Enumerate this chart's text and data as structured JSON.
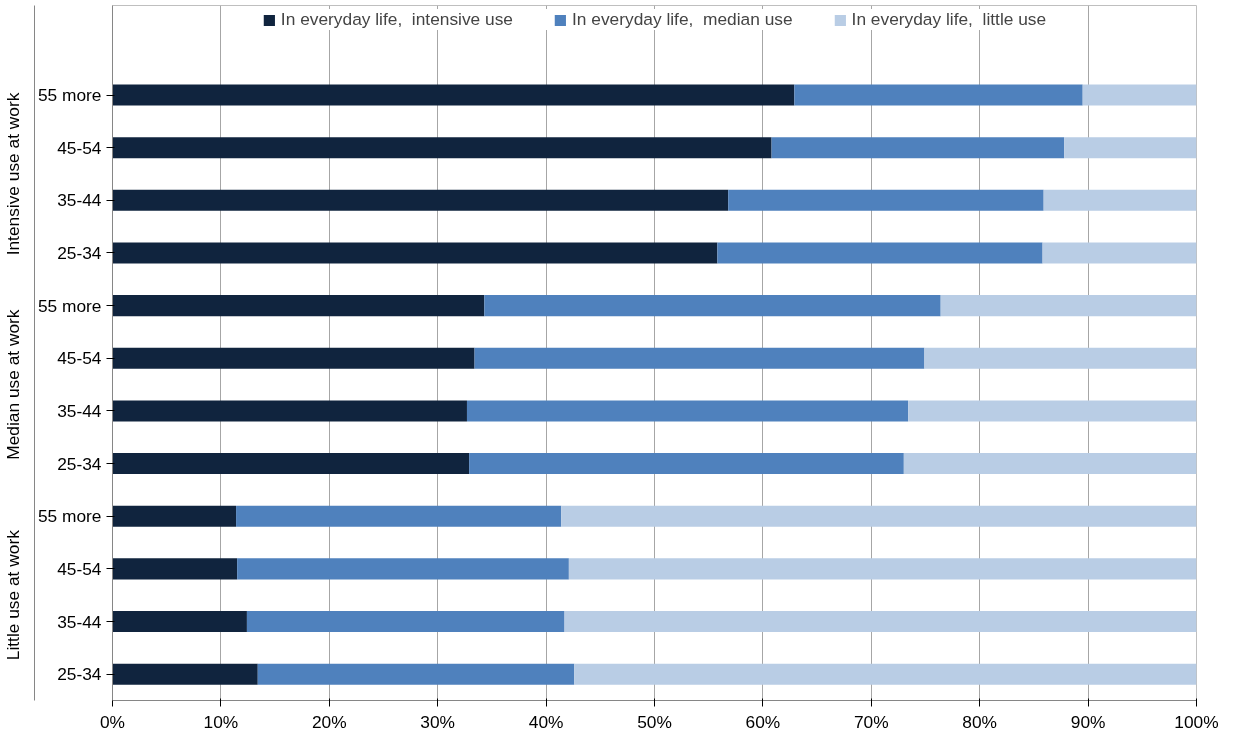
{
  "chart_data": {
    "type": "bar",
    "orientation": "horizontal",
    "stacked": true,
    "categories": [
      "55 more",
      "45-54",
      "35-44",
      "25-34",
      "55 more",
      "45-54",
      "35-44",
      "25-34",
      "55 more",
      "45-54",
      "35-44",
      "25-34"
    ],
    "annotations": [
      "Intensive use at work",
      "Median use at work",
      "Little use at work"
    ],
    "series": [
      {
        "name": "In everyday life,  intensive use",
        "color": "#10243e",
        "values": [
          62.9,
          60.8,
          56.8,
          55.8,
          34.3,
          33.4,
          32.7,
          32.9,
          11.4,
          11.5,
          12.4,
          13.4
        ]
      },
      {
        "name": "In everyday life,  median use",
        "color": "#4f81bd",
        "values": [
          26.6,
          27.0,
          29.1,
          30.0,
          42.1,
          41.5,
          40.7,
          40.1,
          30.0,
          30.6,
          29.3,
          29.2
        ]
      },
      {
        "name": "In everyday life,  little use",
        "color": "#b9cde5",
        "values": [
          10.5,
          12.2,
          14.1,
          14.2,
          23.6,
          25.1,
          26.6,
          27.0,
          58.6,
          57.9,
          58.3,
          57.4
        ]
      }
    ],
    "xlim": [
      0,
      100
    ],
    "xticks": [
      {
        "value": 0,
        "label": "0%"
      },
      {
        "value": 10,
        "label": "10%"
      },
      {
        "value": 20,
        "label": "20%"
      },
      {
        "value": 30,
        "label": "30%"
      },
      {
        "value": 40,
        "label": "40%"
      },
      {
        "value": 50,
        "label": "50%"
      },
      {
        "value": 60,
        "label": "60%"
      },
      {
        "value": 70,
        "label": "70%"
      },
      {
        "value": 80,
        "label": "80%"
      },
      {
        "value": 90,
        "label": "90%"
      },
      {
        "value": 100,
        "label": "100%"
      }
    ],
    "grid": "x",
    "legend": "top"
  }
}
